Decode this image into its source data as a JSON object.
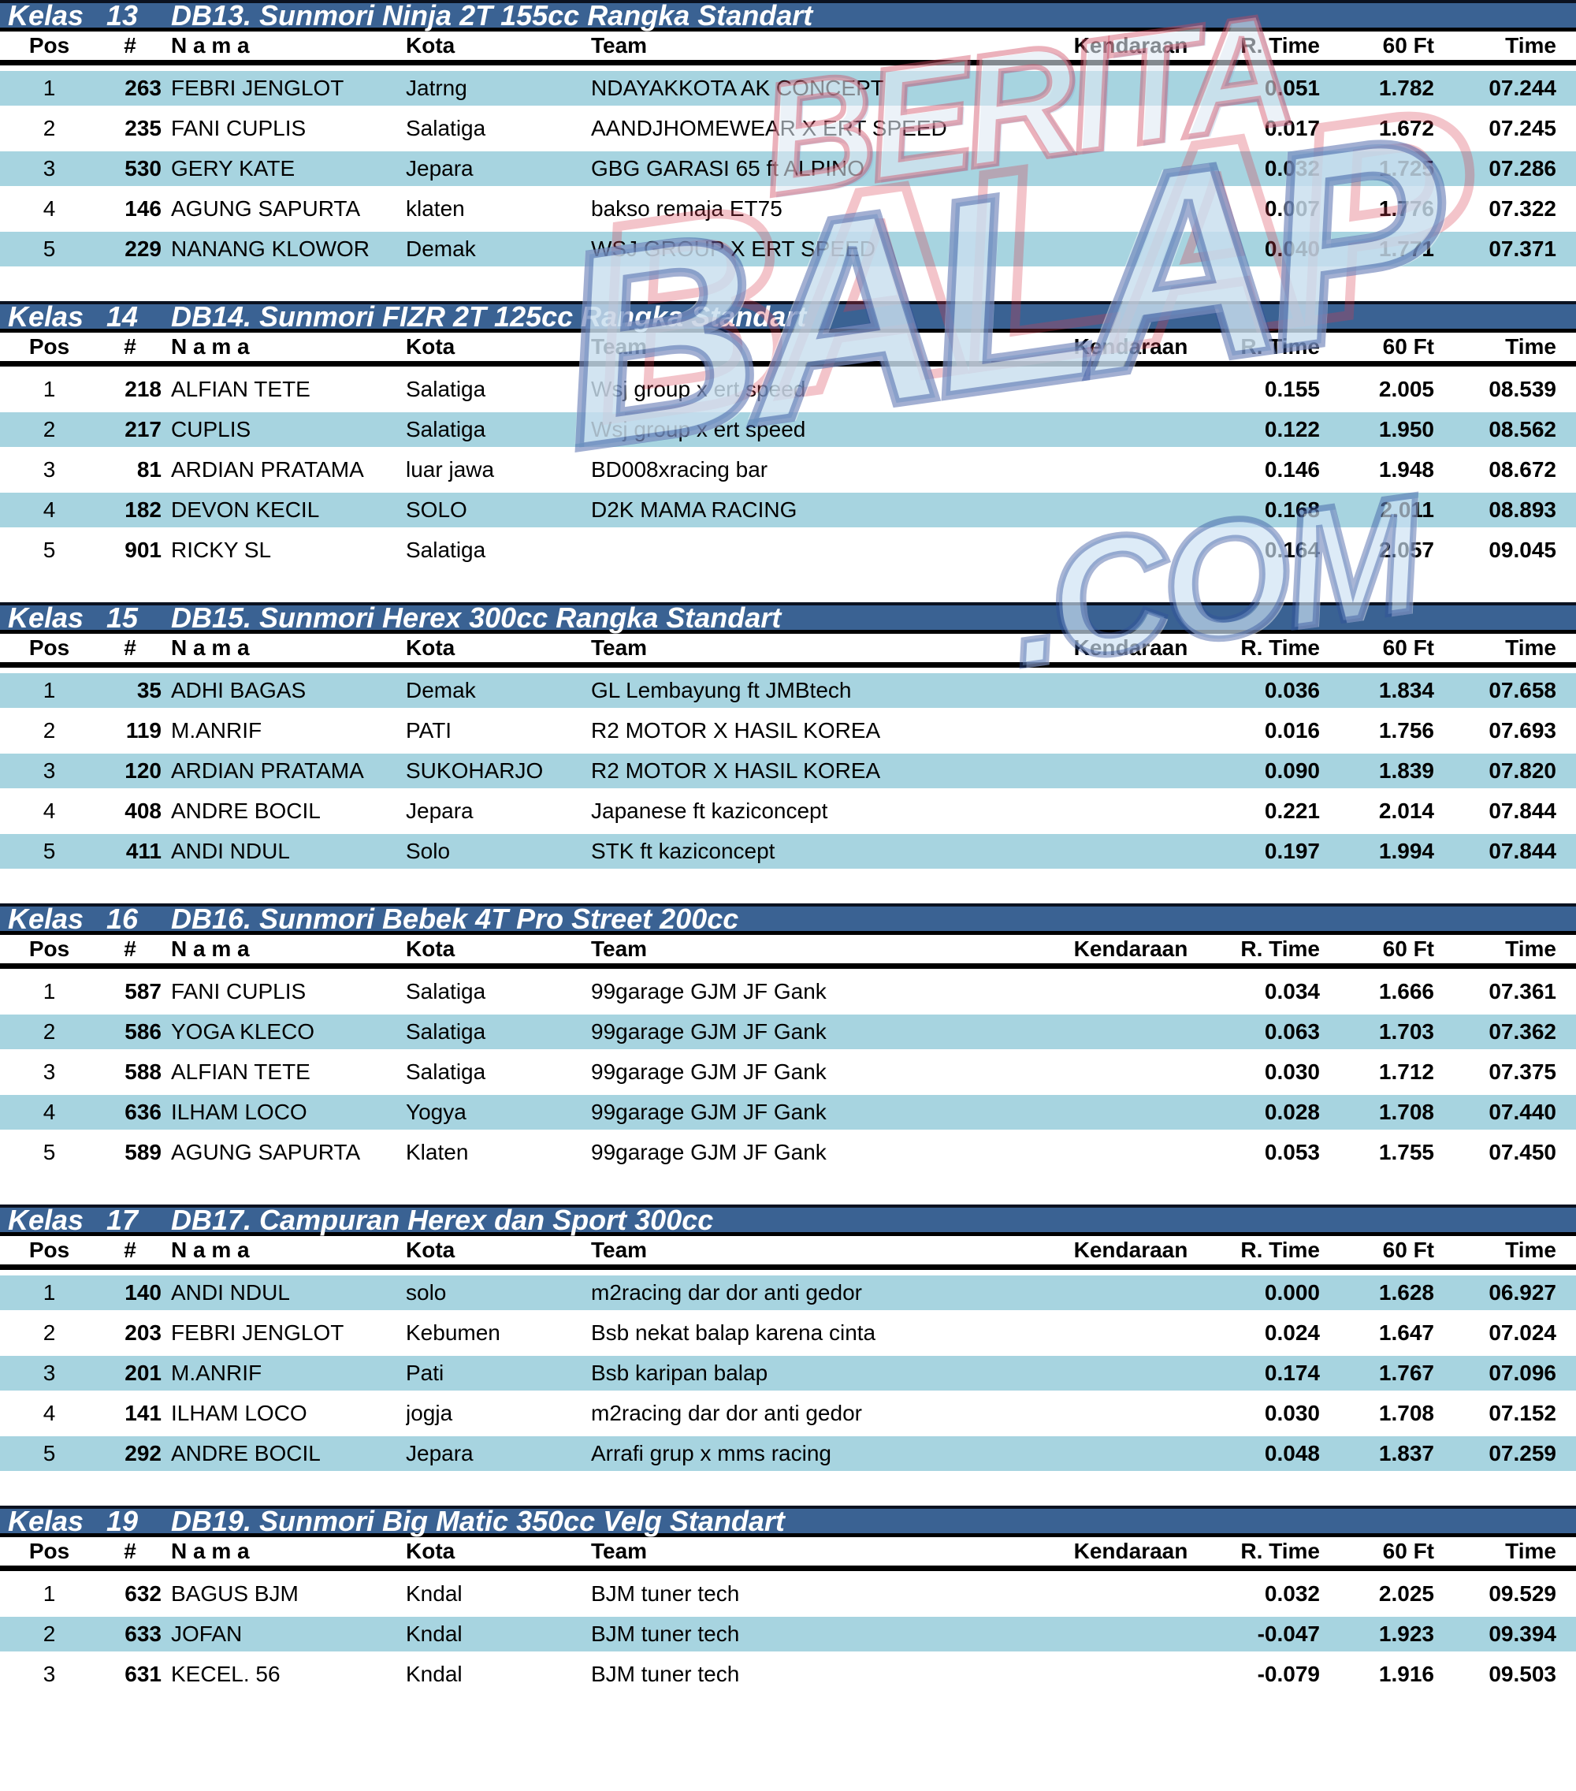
{
  "colors": {
    "title_bar": "#3A6293",
    "row_shade": "#A7D4E0",
    "rule": "#000000",
    "watermark_red": "#D0465C",
    "watermark_blue": "#304E9C"
  },
  "columns": {
    "pos": "Pos",
    "num": "#",
    "nama": "N a m a",
    "kota": "Kota",
    "team": "Team",
    "kendaraan": "Kendaraan",
    "rtime": "R. Time",
    "sixty": "60 Ft",
    "time": "Time"
  },
  "watermark": {
    "line1": "BERITA",
    "line2": "BALAP",
    "line3": ".COM"
  },
  "tables": [
    {
      "kelas_label": "Kelas",
      "kelas_no": "13",
      "title": "DB13. Sunmori Ninja 2T 155cc Rangka Standart",
      "first_row_shaded": true,
      "rows": [
        {
          "pos": "1",
          "num": "263",
          "nama": "FEBRI JENGLOT",
          "kota": "Jatrng",
          "team": "NDAYAKKOTA AK CONCEPT",
          "kendaraan": "",
          "rtime": "0.051",
          "sixty": "1.782",
          "time": "07.244"
        },
        {
          "pos": "2",
          "num": "235",
          "nama": "FANI CUPLIS",
          "kota": "Salatiga",
          "team": "AANDJHOMEWEAR X ERT SPEED",
          "kendaraan": "",
          "rtime": "0.017",
          "sixty": "1.672",
          "time": "07.245"
        },
        {
          "pos": "3",
          "num": "530",
          "nama": "GERY KATE",
          "kota": "Jepara",
          "team": "GBG GARASI 65 ft ALPINO",
          "kendaraan": "",
          "rtime": "0.032",
          "sixty": "1.725",
          "time": "07.286"
        },
        {
          "pos": "4",
          "num": "146",
          "nama": "AGUNG SAPURTA",
          "kota": "klaten",
          "team": "bakso remaja ET75",
          "kendaraan": "",
          "rtime": "0.007",
          "sixty": "1.776",
          "time": "07.322"
        },
        {
          "pos": "5",
          "num": "229",
          "nama": "NANANG KLOWOR",
          "kota": "Demak",
          "team": "WSJ GROUP X ERT SPEED",
          "kendaraan": "",
          "rtime": "0.040",
          "sixty": "1.771",
          "time": "07.371"
        }
      ]
    },
    {
      "kelas_label": "Kelas",
      "kelas_no": "14",
      "title": "DB14. Sunmori FIZR 2T 125cc Rangka Standart",
      "first_row_shaded": false,
      "rows": [
        {
          "pos": "1",
          "num": "218",
          "nama": "ALFIAN TETE",
          "kota": "Salatiga",
          "team": "Wsj group x ert speed",
          "kendaraan": "",
          "rtime": "0.155",
          "sixty": "2.005",
          "time": "08.539"
        },
        {
          "pos": "2",
          "num": "217",
          "nama": "CUPLIS",
          "kota": "Salatiga",
          "team": "Wsj group x ert speed",
          "kendaraan": "",
          "rtime": "0.122",
          "sixty": "1.950",
          "time": "08.562"
        },
        {
          "pos": "3",
          "num": "81",
          "nama": "ARDIAN PRATAMA",
          "kota": "luar jawa",
          "team": "BD008xracing bar",
          "kendaraan": "",
          "rtime": "0.146",
          "sixty": "1.948",
          "time": "08.672"
        },
        {
          "pos": "4",
          "num": "182",
          "nama": "DEVON KECIL",
          "kota": "SOLO",
          "team": "D2K MAMA RACING",
          "kendaraan": "",
          "rtime": "0.168",
          "sixty": "2.011",
          "time": "08.893"
        },
        {
          "pos": "5",
          "num": "901",
          "nama": "RICKY SL",
          "kota": "Salatiga",
          "team": "",
          "kendaraan": "",
          "rtime": "0.164",
          "sixty": "2.057",
          "time": "09.045"
        }
      ]
    },
    {
      "kelas_label": "Kelas",
      "kelas_no": "15",
      "title": "DB15. Sunmori Herex 300cc Rangka Standart",
      "first_row_shaded": true,
      "rows": [
        {
          "pos": "1",
          "num": "35",
          "nama": "ADHI BAGAS",
          "kota": "Demak",
          "team": "GL Lembayung ft JMBtech",
          "kendaraan": "",
          "rtime": "0.036",
          "sixty": "1.834",
          "time": "07.658"
        },
        {
          "pos": "2",
          "num": "119",
          "nama": "M.ANRIF",
          "kota": "PATI",
          "team": "R2 MOTOR X HASIL KOREA",
          "kendaraan": "",
          "rtime": "0.016",
          "sixty": "1.756",
          "time": "07.693"
        },
        {
          "pos": "3",
          "num": "120",
          "nama": "ARDIAN PRATAMA",
          "kota": "SUKOHARJO",
          "team": "R2 MOTOR X HASIL KOREA",
          "kendaraan": "",
          "rtime": "0.090",
          "sixty": "1.839",
          "time": "07.820"
        },
        {
          "pos": "4",
          "num": "408",
          "nama": "ANDRE BOCIL",
          "kota": "Jepara",
          "team": "Japanese ft kaziconcept",
          "kendaraan": "",
          "rtime": "0.221",
          "sixty": "2.014",
          "time": "07.844"
        },
        {
          "pos": "5",
          "num": "411",
          "nama": "ANDI NDUL",
          "kota": "Solo",
          "team": "STK ft kaziconcept",
          "kendaraan": "",
          "rtime": "0.197",
          "sixty": "1.994",
          "time": "07.844"
        }
      ]
    },
    {
      "kelas_label": "Kelas",
      "kelas_no": "16",
      "title": "DB16. Sunmori Bebek 4T Pro Street 200cc",
      "first_row_shaded": false,
      "rows": [
        {
          "pos": "1",
          "num": "587",
          "nama": "FANI CUPLIS",
          "kota": "Salatiga",
          "team": "99garage GJM JF Gank",
          "kendaraan": "",
          "rtime": "0.034",
          "sixty": "1.666",
          "time": "07.361"
        },
        {
          "pos": "2",
          "num": "586",
          "nama": "YOGA KLECO",
          "kota": "Salatiga",
          "team": "99garage GJM JF Gank",
          "kendaraan": "",
          "rtime": "0.063",
          "sixty": "1.703",
          "time": "07.362"
        },
        {
          "pos": "3",
          "num": "588",
          "nama": "ALFIAN TETE",
          "kota": "Salatiga",
          "team": "99garage GJM JF Gank",
          "kendaraan": "",
          "rtime": "0.030",
          "sixty": "1.712",
          "time": "07.375"
        },
        {
          "pos": "4",
          "num": "636",
          "nama": "ILHAM LOCO",
          "kota": "Yogya",
          "team": "99garage GJM JF Gank",
          "kendaraan": "",
          "rtime": "0.028",
          "sixty": "1.708",
          "time": "07.440"
        },
        {
          "pos": "5",
          "num": "589",
          "nama": "AGUNG SAPURTA",
          "kota": "Klaten",
          "team": "99garage GJM JF Gank",
          "kendaraan": "",
          "rtime": "0.053",
          "sixty": "1.755",
          "time": "07.450"
        }
      ]
    },
    {
      "kelas_label": "Kelas",
      "kelas_no": "17",
      "title": "DB17. Campuran Herex dan Sport 300cc",
      "first_row_shaded": true,
      "rows": [
        {
          "pos": "1",
          "num": "140",
          "nama": "ANDI NDUL",
          "kota": "solo",
          "team": "m2racing dar dor anti gedor",
          "kendaraan": "",
          "rtime": "0.000",
          "sixty": "1.628",
          "time": "06.927"
        },
        {
          "pos": "2",
          "num": "203",
          "nama": "FEBRI JENGLOT",
          "kota": "Kebumen",
          "team": "Bsb nekat balap karena cinta",
          "kendaraan": "",
          "rtime": "0.024",
          "sixty": "1.647",
          "time": "07.024"
        },
        {
          "pos": "3",
          "num": "201",
          "nama": "M.ANRIF",
          "kota": "Pati",
          "team": "Bsb karipan balap",
          "kendaraan": "",
          "rtime": "0.174",
          "sixty": "1.767",
          "time": "07.096"
        },
        {
          "pos": "4",
          "num": "141",
          "nama": "ILHAM LOCO",
          "kota": "jogja",
          "team": "m2racing dar dor anti gedor",
          "kendaraan": "",
          "rtime": "0.030",
          "sixty": "1.708",
          "time": "07.152"
        },
        {
          "pos": "5",
          "num": "292",
          "nama": "ANDRE BOCIL",
          "kota": "Jepara",
          "team": "Arrafi grup x mms racing",
          "kendaraan": "",
          "rtime": "0.048",
          "sixty": "1.837",
          "time": "07.259"
        }
      ]
    },
    {
      "kelas_label": "Kelas",
      "kelas_no": "19",
      "title": "DB19. Sunmori Big Matic 350cc Velg Standart",
      "first_row_shaded": false,
      "rows": [
        {
          "pos": "1",
          "num": "632",
          "nama": "BAGUS BJM",
          "kota": "Kndal",
          "team": "BJM tuner tech",
          "kendaraan": "",
          "rtime": "0.032",
          "sixty": "2.025",
          "time": "09.529"
        },
        {
          "pos": "2",
          "num": "633",
          "nama": "JOFAN",
          "kota": "Kndal",
          "team": "BJM tuner tech",
          "kendaraan": "",
          "rtime": "-0.047",
          "sixty": "1.923",
          "time": "09.394"
        },
        {
          "pos": "3",
          "num": "631",
          "nama": "KECEL. 56",
          "kota": "Kndal",
          "team": "BJM tuner tech",
          "kendaraan": "",
          "rtime": "-0.079",
          "sixty": "1.916",
          "time": "09.503"
        }
      ]
    }
  ]
}
